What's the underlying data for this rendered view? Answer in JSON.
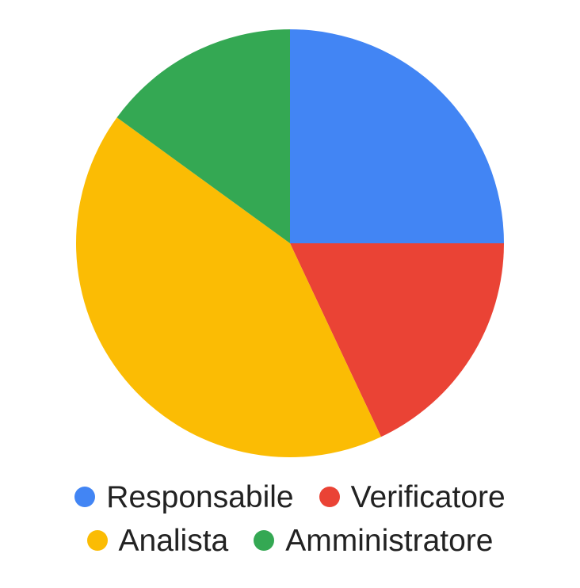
{
  "chart_data": {
    "type": "pie",
    "title": "",
    "legend_position": "bottom",
    "categories": [
      "Responsabile",
      "Verificatore",
      "Analista",
      "Amministratore"
    ],
    "values": [
      25,
      18,
      42,
      15
    ],
    "colors": [
      "#4285F4",
      "#EA4335",
      "#FBBC04",
      "#34A853"
    ],
    "start_angle": "top",
    "direction": "clockwise"
  }
}
